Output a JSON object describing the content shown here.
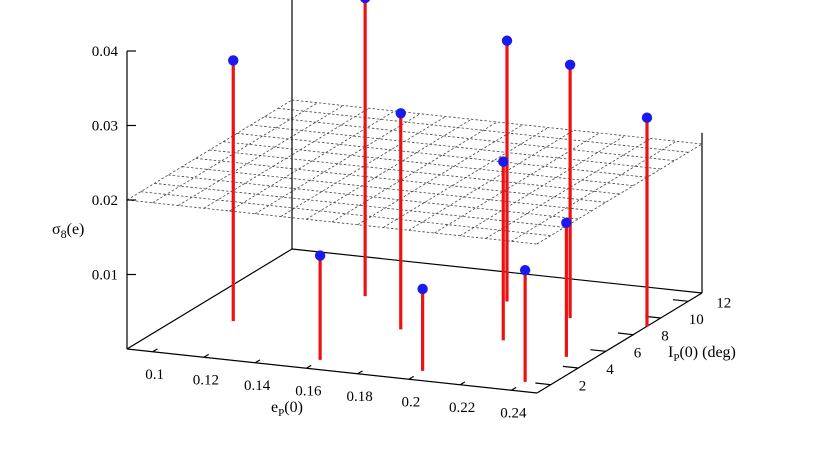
{
  "chart_data": {
    "type": "scatter",
    "subtype": "3d-impulse",
    "title": "",
    "xlabel": {
      "main": "e",
      "sub": "P",
      "rest": "(0)"
    },
    "ylabel": {
      "main": "I",
      "sub": "P",
      "rest": "(0) (deg)"
    },
    "zlabel": {
      "main": "σ",
      "sub": "8",
      "rest": "(e)"
    },
    "xlim": [
      0.09,
      0.25
    ],
    "ylim": [
      1,
      13
    ],
    "zlim": [
      0.0,
      0.04
    ],
    "x_ticks": [
      "0.1",
      "0.12",
      "0.14",
      "0.16",
      "0.18",
      "0.2",
      "0.22",
      "0.24"
    ],
    "y_ticks": [
      "2",
      "4",
      "6",
      "8",
      "10",
      "12"
    ],
    "z_ticks": [
      "0.01",
      "0.02",
      "0.03",
      "0.04"
    ],
    "grid": true,
    "grid_z": 0.02,
    "impulse_color": "#ee1111",
    "point_color": "#1a1aee",
    "points": [
      {
        "x": 0.11,
        "y": 5,
        "z": 0.035
      },
      {
        "x": 0.14,
        "y": 9,
        "z": 0.04
      },
      {
        "x": 0.16,
        "y": 2,
        "z": 0.014
      },
      {
        "x": 0.17,
        "y": 6,
        "z": 0.029
      },
      {
        "x": 0.19,
        "y": 10,
        "z": 0.035
      },
      {
        "x": 0.2,
        "y": 2,
        "z": 0.011
      },
      {
        "x": 0.21,
        "y": 6,
        "z": 0.024
      },
      {
        "x": 0.22,
        "y": 9,
        "z": 0.034
      },
      {
        "x": 0.24,
        "y": 2,
        "z": 0.015
      },
      {
        "x": 0.24,
        "y": 5,
        "z": 0.018
      },
      {
        "x": 0.25,
        "y": 9,
        "z": 0.028
      }
    ]
  }
}
